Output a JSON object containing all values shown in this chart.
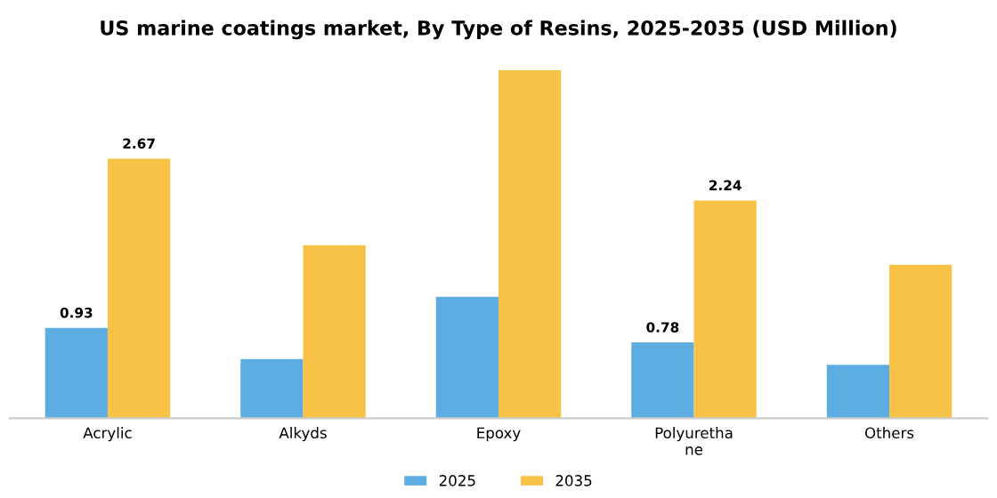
{
  "chart_data": {
    "type": "bar",
    "title": "US marine coatings market, By Type of Resins, 2025-2035 (USD Million)",
    "categories": [
      "Acrylic",
      "Alkyds",
      "Epoxy",
      "Polyurethane",
      "Others"
    ],
    "series": [
      {
        "name": "2025",
        "color": "#5dade2",
        "values": [
          0.93,
          0.61,
          1.25,
          0.78,
          0.55
        ],
        "value_labels": [
          "0.93",
          null,
          null,
          "0.78",
          null
        ]
      },
      {
        "name": "2035",
        "color": "#f8c246",
        "values": [
          2.67,
          1.78,
          3.58,
          2.24,
          1.58
        ],
        "value_labels": [
          "2.67",
          null,
          null,
          "2.24",
          null
        ]
      }
    ],
    "legend": "bottom",
    "grid": false
  }
}
